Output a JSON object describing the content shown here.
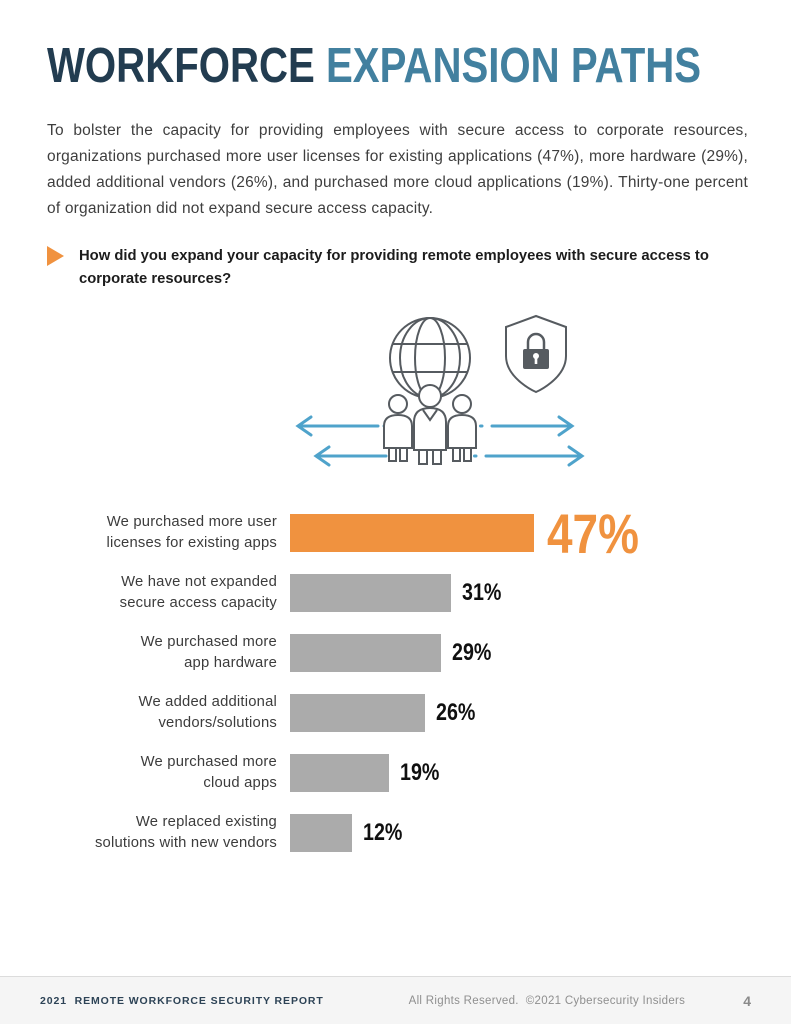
{
  "header": {
    "title_primary": "WORKFORCE ",
    "title_secondary": "EXPANSION PATHS"
  },
  "intro_text": "To bolster the capacity for providing employees with secure access to corporate resources, organizations purchased more user licenses for existing applications (47%), more hardware (29%), added additional vendors (26%), and purchased more cloud applications (19%). Thirty-one percent of organization did not expand secure access capacity.",
  "question_text": "How did you expand your capacity for providing remote employees with secure access to corporate resources?",
  "chart_data": {
    "type": "bar",
    "orientation": "horizontal",
    "categories": [
      "We purchased more user licenses for existing apps",
      "We have not expanded secure access capacity",
      "We purchased more app hardware",
      "We added additional vendors/solutions",
      "We purchased more cloud apps",
      "We replaced existing solutions with new vendors"
    ],
    "values": [
      47,
      31,
      29,
      26,
      19,
      12
    ],
    "value_suffix": "%",
    "highlight_index": 0,
    "colors": {
      "highlight": "#f0923f",
      "default": "#ababab"
    },
    "legend": "none",
    "axis": "none",
    "rows": [
      {
        "label": [
          "We purchased more user",
          "licenses for existing apps"
        ],
        "value": 47,
        "value_label": "47%",
        "highlight": true
      },
      {
        "label": [
          "We have not expanded",
          "secure access capacity"
        ],
        "value": 31,
        "value_label": "31%",
        "highlight": false
      },
      {
        "label": [
          "We purchased more",
          "app hardware"
        ],
        "value": 29,
        "value_label": "29%",
        "highlight": false
      },
      {
        "label": [
          "We added additional",
          "vendors/solutions"
        ],
        "value": 26,
        "value_label": "26%",
        "highlight": false
      },
      {
        "label": [
          "We purchased more",
          "cloud apps"
        ],
        "value": 19,
        "value_label": "19%",
        "highlight": false
      },
      {
        "label": [
          "We replaced existing",
          "solutions with new vendors"
        ],
        "value": 12,
        "value_label": "12%",
        "highlight": false
      }
    ]
  },
  "illustration": {
    "description": "globe with three people, security shield with padlock, blue expansion arrows",
    "arrow_color": "#4fa3cb",
    "line_color": "#565b60"
  },
  "footer": {
    "report_title": "2021  REMOTE WORKFORCE SECURITY REPORT",
    "rights": "All Rights Reserved.  ©2021 Cybersecurity Insiders",
    "page_number": "4"
  }
}
